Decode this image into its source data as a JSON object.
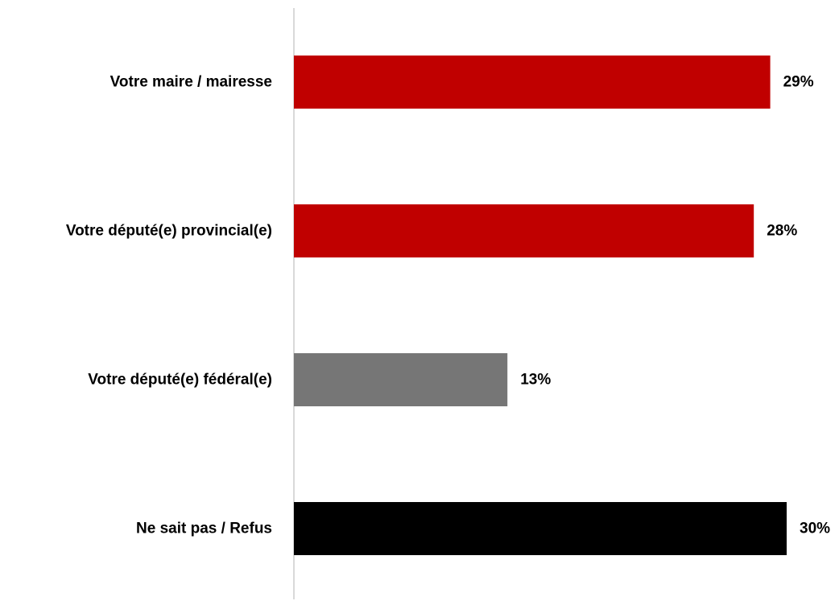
{
  "chart_data": {
    "type": "bar",
    "orientation": "horizontal",
    "title": "",
    "xlabel": "",
    "ylabel": "",
    "categories": [
      "Votre maire / mairesse",
      "Votre député(e) provincial(e)",
      "Votre député(e) fédéral(e)",
      "Ne sait pas / Refus"
    ],
    "values": [
      29,
      28,
      13,
      30
    ],
    "value_labels": [
      "29%",
      "28%",
      "13%",
      "30%"
    ],
    "bar_colors": [
      "#c00000",
      "#c00000",
      "#767676",
      "#000000"
    ],
    "axis_color": "#d9d9d9",
    "xlim": [
      0,
      30
    ],
    "grid": false,
    "legend": "none"
  }
}
